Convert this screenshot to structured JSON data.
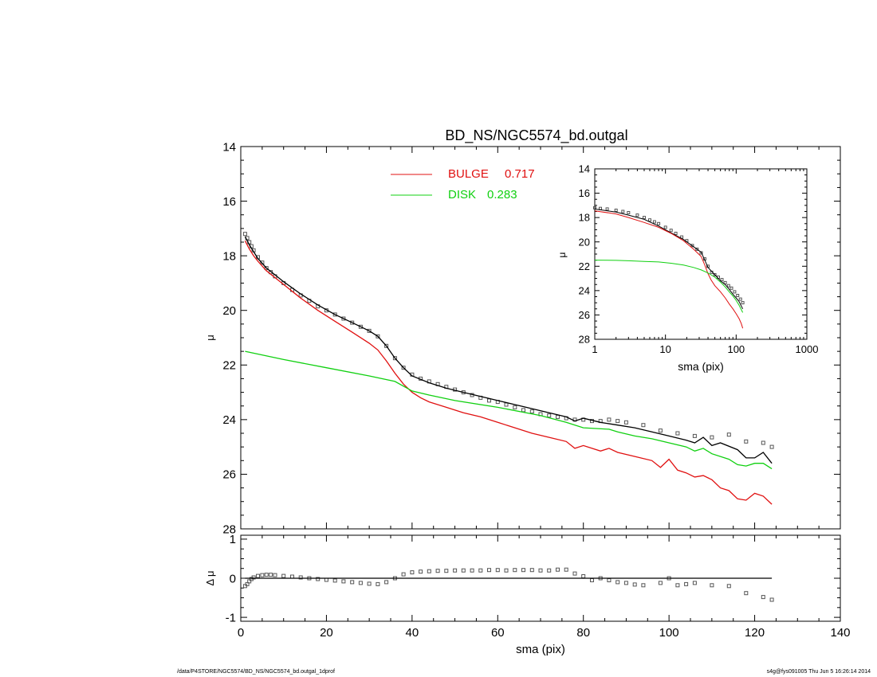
{
  "chart_data": [
    {
      "type": "scatter",
      "panel": "main",
      "title": "BD_NS/NGC5574_bd.outgal",
      "xlabel": "",
      "ylabel": "μ",
      "xlim": [
        0,
        140
      ],
      "ylim": [
        28,
        14
      ],
      "y_inverted": true,
      "x_ticks": [
        0,
        20,
        40,
        60,
        80,
        100,
        120,
        140
      ],
      "y_ticks": [
        14,
        16,
        18,
        20,
        22,
        24,
        26,
        28
      ],
      "legend": [
        {
          "label": "BULGE",
          "value": "0.717",
          "color": "#e01010"
        },
        {
          "label": "DISK",
          "value": "0.283",
          "color": "#10d010"
        }
      ],
      "series": [
        {
          "name": "data",
          "style": "squares",
          "color": "#555555",
          "x": [
            1,
            1.5,
            2,
            2.5,
            3,
            4,
            5,
            6,
            7,
            8,
            10,
            12,
            14,
            16,
            18,
            20,
            22,
            24,
            26,
            28,
            30,
            32,
            34,
            36,
            38,
            40,
            42,
            44,
            46,
            48,
            50,
            52,
            54,
            56,
            58,
            60,
            62,
            64,
            66,
            68,
            70,
            72,
            74,
            76,
            78,
            80,
            82,
            84,
            86,
            88,
            90,
            94,
            98,
            102,
            106,
            110,
            114,
            118,
            122,
            124
          ],
          "y": [
            17.2,
            17.35,
            17.5,
            17.65,
            17.8,
            18.05,
            18.25,
            18.45,
            18.6,
            18.75,
            19.0,
            19.25,
            19.45,
            19.65,
            19.85,
            20.0,
            20.15,
            20.3,
            20.45,
            20.6,
            20.75,
            20.95,
            21.3,
            21.75,
            22.1,
            22.35,
            22.5,
            22.6,
            22.7,
            22.8,
            22.9,
            23.0,
            23.1,
            23.2,
            23.3,
            23.35,
            23.45,
            23.55,
            23.65,
            23.7,
            23.8,
            23.85,
            23.9,
            23.95,
            24.0,
            24.0,
            24.05,
            24.05,
            24.0,
            24.05,
            24.1,
            24.2,
            24.4,
            24.5,
            24.6,
            24.65,
            24.55,
            24.8,
            24.85,
            25.0
          ]
        },
        {
          "name": "model",
          "style": "line",
          "color": "#000000",
          "x": [
            1,
            2,
            3,
            4,
            6,
            8,
            10,
            14,
            18,
            22,
            26,
            30,
            32,
            34,
            36,
            38,
            40,
            44,
            48,
            52,
            56,
            60,
            64,
            68,
            72,
            76,
            78,
            80,
            84,
            88,
            92,
            96,
            100,
            104,
            106,
            108,
            110,
            112,
            116,
            118,
            120,
            122,
            124
          ],
          "y": [
            17.3,
            17.6,
            17.85,
            18.1,
            18.45,
            18.7,
            18.95,
            19.4,
            19.8,
            20.15,
            20.45,
            20.75,
            20.95,
            21.3,
            21.75,
            22.1,
            22.4,
            22.65,
            22.85,
            23.0,
            23.15,
            23.3,
            23.45,
            23.6,
            23.75,
            23.9,
            24.05,
            23.95,
            24.1,
            24.2,
            24.3,
            24.45,
            24.6,
            24.75,
            24.85,
            24.65,
            24.95,
            24.85,
            25.1,
            25.4,
            25.4,
            25.2,
            25.6
          ]
        },
        {
          "name": "bulge",
          "style": "line",
          "color": "#e01010",
          "x": [
            1,
            2,
            3,
            4,
            6,
            8,
            10,
            14,
            18,
            22,
            26,
            30,
            32,
            34,
            36,
            38,
            40,
            42,
            44,
            48,
            52,
            56,
            60,
            64,
            68,
            72,
            76,
            78,
            80,
            84,
            86,
            88,
            92,
            96,
            98,
            100,
            102,
            104,
            106,
            108,
            110,
            112,
            114,
            116,
            118,
            120,
            122,
            124
          ],
          "y": [
            17.45,
            17.75,
            18.0,
            18.2,
            18.55,
            18.8,
            19.05,
            19.55,
            20.0,
            20.4,
            20.8,
            21.2,
            21.45,
            21.85,
            22.3,
            22.7,
            23.0,
            23.2,
            23.35,
            23.55,
            23.75,
            23.9,
            24.1,
            24.3,
            24.5,
            24.65,
            24.8,
            25.05,
            24.95,
            25.15,
            25.05,
            25.2,
            25.35,
            25.5,
            25.75,
            25.45,
            25.85,
            25.95,
            26.1,
            26.05,
            26.2,
            26.5,
            26.6,
            26.9,
            26.95,
            26.7,
            26.8,
            27.1
          ]
        },
        {
          "name": "disk",
          "style": "line",
          "color": "#10d010",
          "x": [
            1,
            10,
            20,
            30,
            36,
            40,
            44,
            50,
            60,
            70,
            76,
            80,
            86,
            88,
            92,
            96,
            100,
            104,
            106,
            108,
            110,
            114,
            116,
            118,
            120,
            122,
            124
          ],
          "y": [
            21.5,
            21.8,
            22.1,
            22.4,
            22.6,
            22.95,
            23.1,
            23.3,
            23.55,
            23.85,
            24.1,
            24.3,
            24.35,
            24.45,
            24.6,
            24.7,
            24.85,
            25.0,
            25.15,
            25.05,
            25.25,
            25.45,
            25.65,
            25.7,
            25.6,
            25.6,
            25.8
          ]
        }
      ]
    },
    {
      "type": "scatter",
      "panel": "residual",
      "xlabel": "sma (pix)",
      "ylabel": "Δ μ",
      "xlim": [
        0,
        140
      ],
      "ylim": [
        -1.1,
        1.1
      ],
      "x_ticks": [
        0,
        20,
        40,
        60,
        80,
        100,
        120,
        140
      ],
      "y_ticks": [
        -1,
        0,
        1
      ],
      "series": [
        {
          "name": "residual",
          "style": "squares",
          "color": "#555555",
          "x": [
            1,
            1.5,
            2,
            2.5,
            3,
            4,
            5,
            6,
            7,
            8,
            10,
            12,
            14,
            16,
            18,
            20,
            22,
            24,
            26,
            28,
            30,
            32,
            34,
            36,
            38,
            40,
            42,
            44,
            46,
            48,
            50,
            52,
            54,
            56,
            58,
            60,
            62,
            64,
            66,
            68,
            70,
            72,
            74,
            76,
            78,
            80,
            82,
            84,
            86,
            88,
            90,
            92,
            94,
            98,
            100,
            102,
            104,
            106,
            110,
            114,
            118,
            122,
            124
          ],
          "y": [
            -0.2,
            -0.15,
            -0.08,
            -0.02,
            0.02,
            0.06,
            0.08,
            0.09,
            0.09,
            0.08,
            0.06,
            0.04,
            0.02,
            0.0,
            -0.02,
            -0.04,
            -0.06,
            -0.08,
            -0.1,
            -0.12,
            -0.14,
            -0.15,
            -0.1,
            0.0,
            0.1,
            0.15,
            0.17,
            0.18,
            0.19,
            0.19,
            0.2,
            0.2,
            0.2,
            0.2,
            0.21,
            0.21,
            0.2,
            0.21,
            0.21,
            0.21,
            0.2,
            0.2,
            0.22,
            0.22,
            0.12,
            0.05,
            -0.05,
            0.0,
            -0.05,
            -0.1,
            -0.12,
            -0.16,
            -0.18,
            -0.12,
            0.0,
            -0.18,
            -0.15,
            -0.12,
            -0.18,
            -0.2,
            -0.38,
            -0.48,
            -0.55
          ]
        },
        {
          "name": "zero",
          "style": "line",
          "color": "#000000",
          "x": [
            1,
            124
          ],
          "y": [
            0,
            0
          ]
        }
      ]
    },
    {
      "type": "scatter",
      "panel": "inset",
      "xlabel": "sma (pix)",
      "ylabel": "μ",
      "x_scale": "log",
      "xlim": [
        1,
        1000
      ],
      "ylim": [
        28,
        14
      ],
      "y_inverted": true,
      "x_ticks": [
        1,
        10,
        100,
        1000
      ],
      "y_ticks": [
        14,
        16,
        18,
        20,
        22,
        24,
        26,
        28
      ],
      "series": [
        {
          "name": "data",
          "style": "squares",
          "color": "#555555",
          "x": [
            1,
            1.2,
            1.5,
            2,
            2.5,
            3,
            4,
            5,
            6,
            7,
            8,
            10,
            12,
            14,
            17,
            20,
            24,
            28,
            32,
            36,
            40,
            45,
            50,
            56,
            63,
            70,
            78,
            86,
            95,
            105,
            115,
            124
          ],
          "y": [
            17.2,
            17.25,
            17.3,
            17.4,
            17.5,
            17.6,
            17.8,
            18.0,
            18.2,
            18.35,
            18.5,
            18.8,
            19.05,
            19.3,
            19.6,
            19.9,
            20.3,
            20.6,
            20.9,
            21.4,
            22.0,
            22.5,
            22.7,
            22.9,
            23.1,
            23.35,
            23.6,
            23.8,
            24.1,
            24.4,
            24.7,
            25.0
          ]
        },
        {
          "name": "model",
          "style": "line",
          "color": "#000000",
          "x": [
            1,
            2,
            3,
            5,
            8,
            12,
            18,
            25,
            32,
            36,
            40,
            50,
            60,
            70,
            80,
            90,
            100,
            110,
            124
          ],
          "y": [
            17.3,
            17.55,
            17.8,
            18.15,
            18.7,
            19.25,
            19.8,
            20.4,
            20.85,
            21.5,
            22.1,
            22.7,
            23.2,
            23.5,
            23.9,
            24.3,
            24.6,
            24.9,
            25.5
          ]
        },
        {
          "name": "bulge",
          "style": "line",
          "color": "#e01010",
          "x": [
            1,
            2,
            3,
            5,
            8,
            12,
            18,
            25,
            32,
            36,
            40,
            44,
            50,
            60,
            70,
            80,
            90,
            100,
            110,
            118,
            124
          ],
          "y": [
            17.45,
            17.7,
            18.0,
            18.4,
            18.8,
            19.3,
            19.9,
            20.6,
            21.2,
            21.9,
            22.6,
            23.1,
            23.6,
            24.1,
            24.6,
            25.1,
            25.5,
            25.9,
            26.3,
            26.7,
            27.1
          ]
        },
        {
          "name": "disk",
          "style": "line",
          "color": "#10d010",
          "x": [
            1,
            2,
            3,
            5,
            8,
            12,
            18,
            25,
            32,
            40,
            50,
            60,
            70,
            80,
            90,
            100,
            110,
            124
          ],
          "y": [
            21.5,
            21.52,
            21.55,
            21.6,
            21.65,
            21.75,
            21.9,
            22.1,
            22.3,
            22.55,
            22.9,
            23.3,
            23.7,
            24.1,
            24.45,
            24.8,
            25.2,
            25.8
          ]
        }
      ]
    }
  ],
  "footer": {
    "left": "/data/P4STORE/NGC5574/BD_NS/NGC5574_bd.outgal_1dprof",
    "right": "s4g@fys091005  Thu Jun  5 16:26:14 2014"
  }
}
